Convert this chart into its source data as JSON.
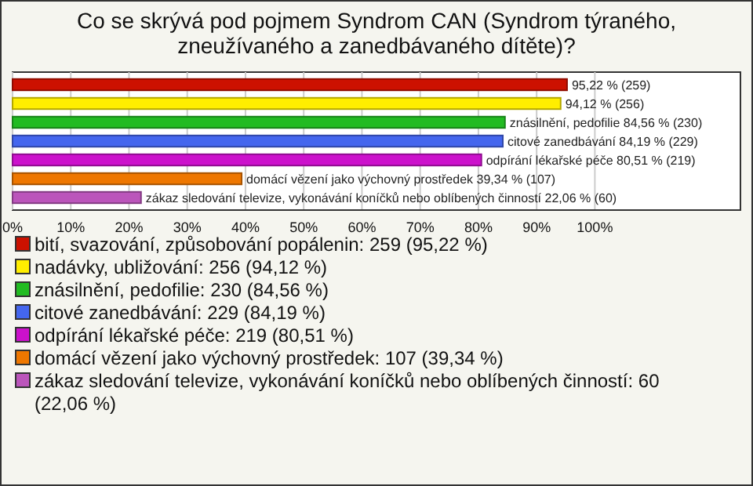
{
  "chart_data": {
    "type": "bar",
    "orientation": "horizontal",
    "title": "Co se skrývá pod pojmem Syndrom CAN (Syndrom týraného, zneužívaného a zanedbávaného dítěte)?",
    "categories": [
      null
    ],
    "series": [
      {
        "name": "bití, svazování, způsobování popálenin: 259 (95,22 %)",
        "color": "#cc1100",
        "values": [
          95.22
        ],
        "value_labels": [
          "95,22 % (259)"
        ]
      },
      {
        "name": "nadávky, ubližování: 256 (94,12 %)",
        "color": "#ffee00",
        "values": [
          94.12
        ],
        "value_labels": [
          "94,12 % (256)"
        ]
      },
      {
        "name": "znásilnění, pedofilie: 230 (84,56 %)",
        "color": "#22bb22",
        "values": [
          84.56
        ],
        "value_labels": [
          "znásilnění, pedofilie 84,56 % (230)"
        ]
      },
      {
        "name": "citové zanedbávání: 229 (84,19 %)",
        "color": "#4466ee",
        "values": [
          84.19
        ],
        "value_labels": [
          "citové zanedbávání 84,19 % (229)"
        ]
      },
      {
        "name": "odpírání lékařské péče: 219 (80,51 %)",
        "color": "#cc11cc",
        "values": [
          80.51
        ],
        "value_labels": [
          "odpírání lékařské péče 80,51 % (219)"
        ]
      },
      {
        "name": "domácí vězení jako výchovný prostředek: 107 (39,34 %)",
        "color": "#ee7700",
        "values": [
          39.34
        ],
        "value_labels": [
          "domácí vězení jako výchovný prostředek 39,34 % (107)"
        ]
      },
      {
        "name": "zákaz sledování televize, vykonávání koníčků nebo oblíbených činností: 60 (22,06 %)",
        "color": "#bb55bb",
        "values": [
          22.06
        ],
        "value_labels": [
          "zákaz sledování televize, vykonávání koníčků nebo oblíbených činností 22,06 % (60)"
        ]
      }
    ],
    "xlim": [
      0,
      125
    ],
    "xticks": [
      {
        "value": 0,
        "label": "0%"
      },
      {
        "value": 10,
        "label": "10%"
      },
      {
        "value": 20,
        "label": "20%"
      },
      {
        "value": 30,
        "label": "30%"
      },
      {
        "value": 40,
        "label": "40%"
      },
      {
        "value": 50,
        "label": "50%"
      },
      {
        "value": 60,
        "label": "60%"
      },
      {
        "value": 70,
        "label": "70%"
      },
      {
        "value": 80,
        "label": "80%"
      },
      {
        "value": 90,
        "label": "90%"
      },
      {
        "value": 100,
        "label": "100%"
      }
    ],
    "grid": "x",
    "legend": "bottom",
    "tick_labels": "x"
  }
}
